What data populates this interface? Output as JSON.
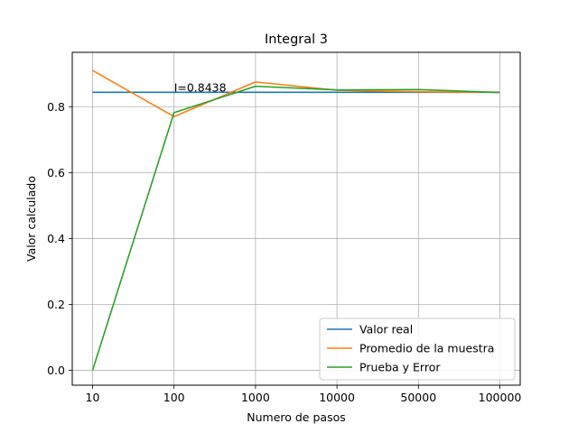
{
  "chart_data": {
    "type": "line",
    "title": "Integral 3",
    "xlabel": "Numero de pasos",
    "ylabel": "Valor calculado",
    "categories": [
      "10",
      "100",
      "1000",
      "10000",
      "50000",
      "100000"
    ],
    "ylim": [
      -0.045,
      0.965
    ],
    "yticks": [
      0.0,
      0.2,
      0.4,
      0.6,
      0.8
    ],
    "ytick_labels": [
      "0.0",
      "0.2",
      "0.4",
      "0.6",
      "0.8"
    ],
    "grid": true,
    "legend_position": "lower-right",
    "annotation": {
      "text": "I=0.8438",
      "x": "100",
      "y": 0.8438
    },
    "series": [
      {
        "name": "Valor real",
        "color": "#1f77b4",
        "values": [
          0.8438,
          0.8438,
          0.8438,
          0.8438,
          0.8438,
          0.8438
        ]
      },
      {
        "name": "Promedio de la muestra",
        "color": "#ff7f0e",
        "values": [
          0.91,
          0.77,
          0.875,
          0.85,
          0.845,
          0.844
        ]
      },
      {
        "name": "Prueba y Error",
        "color": "#2ca02c",
        "values": [
          0.0,
          0.782,
          0.862,
          0.851,
          0.852,
          0.843
        ]
      }
    ]
  }
}
